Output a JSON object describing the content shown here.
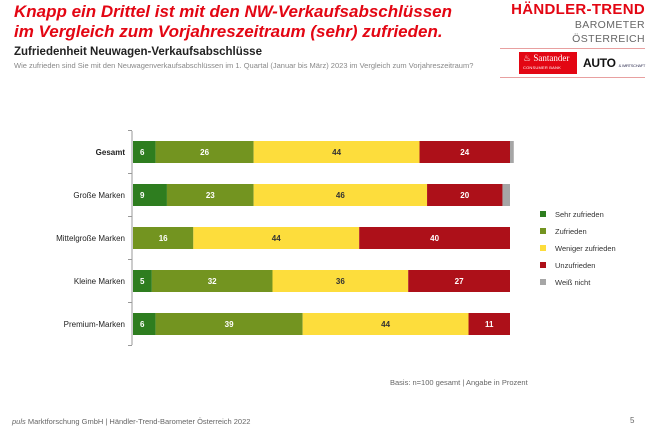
{
  "headline": "Knapp ein Drittel ist mit den NW-Verkaufsabschlüssen im Vergleich zum Vorjahreszeitraum (sehr) zufrieden.",
  "logo": {
    "brand": "HÄNDLER-TREND",
    "sub": "BAROMETER ÖSTERREICH",
    "partner1": "Santander",
    "partner1_sub": "CONSUMER BANK",
    "partner2": "AUTO",
    "partner2_sub": "& WIRTSCHAFT"
  },
  "footer": {
    "basis": "Basis: n=100 gesamt | Angabe in Prozent",
    "source_italic": "puls",
    "source": " Marktforschung GmbH | Händler-Trend-Barometer Österreich 2022",
    "page_number": "5"
  },
  "chart_data": {
    "type": "bar",
    "orientation": "horizontal-stacked-100",
    "title": "Zufriedenheit Neuwagen-Verkaufsabschlüsse",
    "subtitle": "Wie zufrieden sind Sie mit den Neuwagenverkaufsabschlüssen im 1. Quartal (Januar bis März) 2023 im Vergleich zum Vorjahreszeitraum?",
    "xlabel": "",
    "ylabel": "",
    "xlim": [
      0,
      100
    ],
    "grid": false,
    "legend_position": "right",
    "categories": [
      "Gesamt",
      "Große Marken",
      "Mittelgroße Marken",
      "Kleine Marken",
      "Premium-Marken"
    ],
    "bold_categories": [
      "Gesamt"
    ],
    "series": [
      {
        "name": "Sehr zufrieden",
        "color": "#2e7d1f",
        "values": [
          6,
          9,
          0,
          5,
          6
        ]
      },
      {
        "name": "Zufrieden",
        "color": "#739420",
        "values": [
          26,
          23,
          16,
          32,
          39
        ]
      },
      {
        "name": "Weniger zufrieden",
        "color": "#fddd3c",
        "values": [
          44,
          46,
          44,
          36,
          44
        ]
      },
      {
        "name": "Unzufrieden",
        "color": "#ad1019",
        "values": [
          24,
          20,
          40,
          27,
          11
        ]
      },
      {
        "name": "Weiß nicht",
        "color": "#a6a6a6",
        "values": [
          1,
          2,
          0,
          0,
          0
        ]
      }
    ],
    "label_colors": [
      "#ffffff",
      "#ffffff",
      "#333333",
      "#ffffff",
      "#ffffff"
    ]
  }
}
